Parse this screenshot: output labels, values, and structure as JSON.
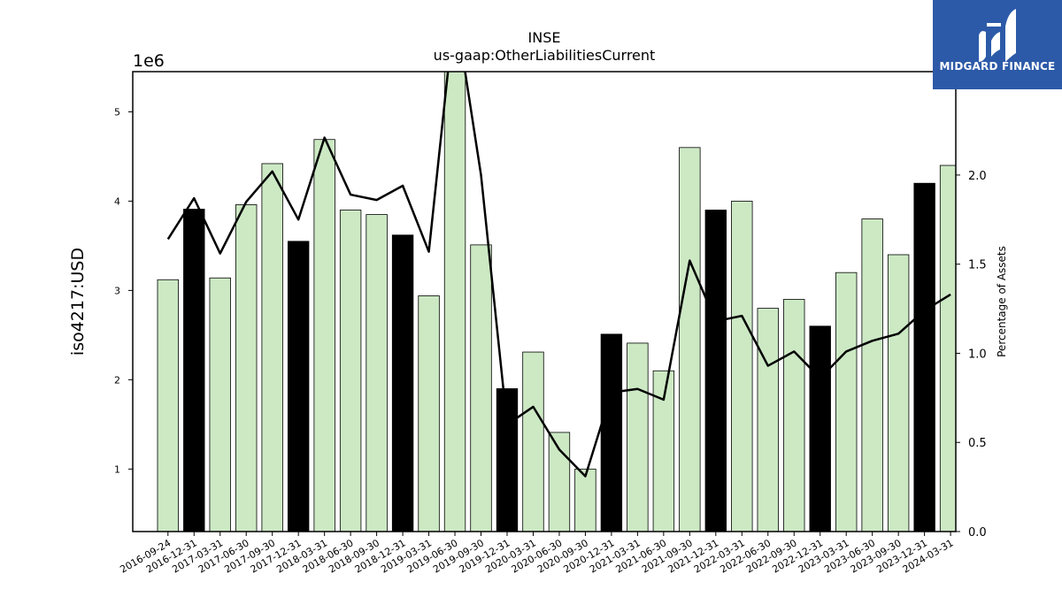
{
  "chart_data": {
    "type": "bar",
    "title": "INSE",
    "subtitle": "us-gaap:OtherLiabilitiesCurrent",
    "ylabel": "iso4217:USD",
    "y2label": "Percentage of Assets",
    "y_offset_text": "1e6",
    "ylim": [
      300000,
      5450000
    ],
    "y2lim": [
      0.0,
      2.58
    ],
    "yticks": [
      1,
      2,
      3,
      4,
      5
    ],
    "y2ticks": [
      "0.0",
      "0.5",
      "1.0",
      "1.5",
      "2.0"
    ],
    "categories": [
      "2016-09-24",
      "2016-12-31",
      "2017-03-31",
      "2017-06-30",
      "2017-09-30",
      "2017-12-31",
      "2018-03-31",
      "2018-06-30",
      "2018-09-30",
      "2018-12-31",
      "2019-03-31",
      "2019-06-30",
      "2019-09-30",
      "2019-12-31",
      "2020-03-31",
      "2020-06-30",
      "2020-09-30",
      "2020-12-31",
      "2021-03-31",
      "2021-06-30",
      "2021-09-30",
      "2021-12-31",
      "2022-03-31",
      "2022-06-30",
      "2022-09-30",
      "2022-12-31",
      "2023-03-31",
      "2023-06-30",
      "2023-09-30",
      "2023-12-31",
      "2024-03-31"
    ],
    "series": [
      {
        "type": "bar",
        "values": [
          3120000,
          3910000,
          3140000,
          3960000,
          4420000,
          3550000,
          4690000,
          3900000,
          3850000,
          3620000,
          2940000,
          5500000,
          3510000,
          1900000,
          2310000,
          1410000,
          1000000,
          2510000,
          2410000,
          2100000,
          4600000,
          3900000,
          4000000,
          2800000,
          2900000,
          2600000,
          3200000,
          3800000,
          3400000,
          4200000,
          4400000
        ],
        "highlight": [
          false,
          true,
          false,
          false,
          false,
          true,
          false,
          false,
          false,
          true,
          false,
          false,
          false,
          true,
          false,
          false,
          false,
          true,
          false,
          false,
          false,
          true,
          false,
          false,
          false,
          true,
          false,
          false,
          false,
          true,
          false
        ]
      },
      {
        "type": "line",
        "axis": "right",
        "values": [
          1.64,
          1.87,
          1.56,
          1.85,
          2.02,
          1.75,
          2.21,
          1.89,
          1.86,
          1.94,
          1.57,
          2.95,
          2.0,
          0.6,
          0.7,
          0.46,
          0.31,
          0.78,
          0.8,
          0.74,
          1.52,
          1.18,
          1.21,
          0.93,
          1.01,
          0.86,
          1.01,
          1.07,
          1.11,
          1.24,
          1.33
        ]
      }
    ],
    "colors": {
      "bar": "#cce9c4",
      "bar_highlight": "#000000",
      "line": "#000000"
    }
  },
  "logo": {
    "text": "MIDGARD FINANCE",
    "background": "#2c5aa8"
  }
}
